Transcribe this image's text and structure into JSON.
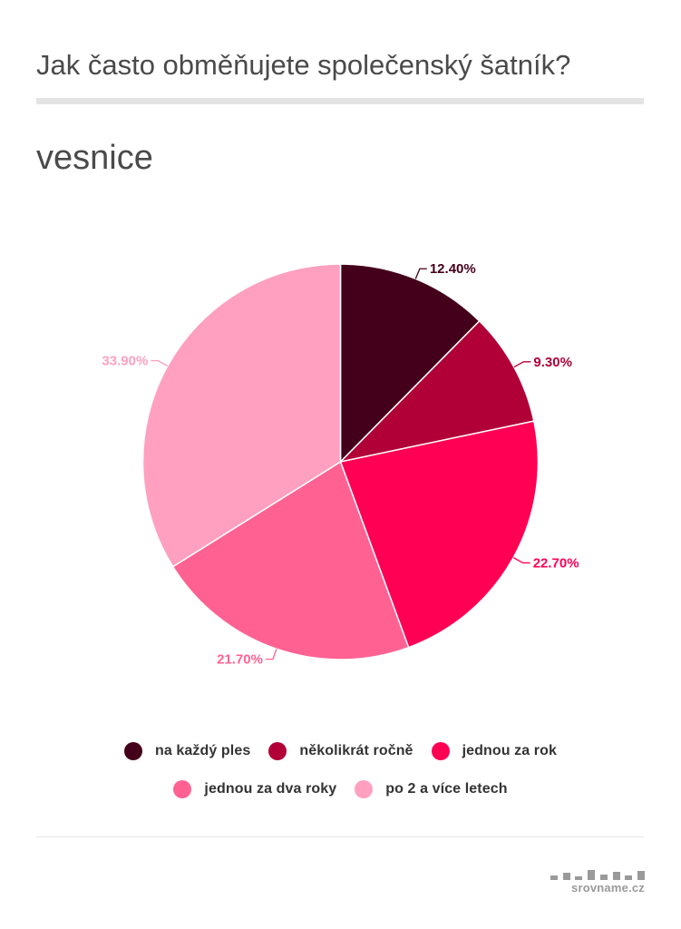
{
  "header": {
    "title": "Jak často obměňujete společenský šatník?",
    "subtitle": "vesnice"
  },
  "chart_data": {
    "type": "pie",
    "categories": [
      "na každý ples",
      "několikrát ročně",
      "jednou za rok",
      "jednou za dva roky",
      "po 2 a více letech"
    ],
    "values": [
      12.4,
      9.3,
      22.7,
      21.7,
      33.9
    ],
    "data_labels": [
      "12.40%",
      "9.30%",
      "22.70%",
      "21.70%",
      "33.90%"
    ],
    "colors": [
      "#44001a",
      "#b10038",
      "#ff0055",
      "#ff6292",
      "#ffa0c0"
    ],
    "legend_position": "bottom"
  },
  "legend": [
    {
      "label": "na každý ples",
      "color": "#44001a"
    },
    {
      "label": "několikrát ročně",
      "color": "#b10038"
    },
    {
      "label": "jednou za rok",
      "color": "#ff0055"
    },
    {
      "label": "jednou za dva roky",
      "color": "#ff6292"
    },
    {
      "label": "po 2 a více letech",
      "color": "#ffa0c0"
    }
  ],
  "footer": {
    "logo_text": "srovname.cz"
  }
}
